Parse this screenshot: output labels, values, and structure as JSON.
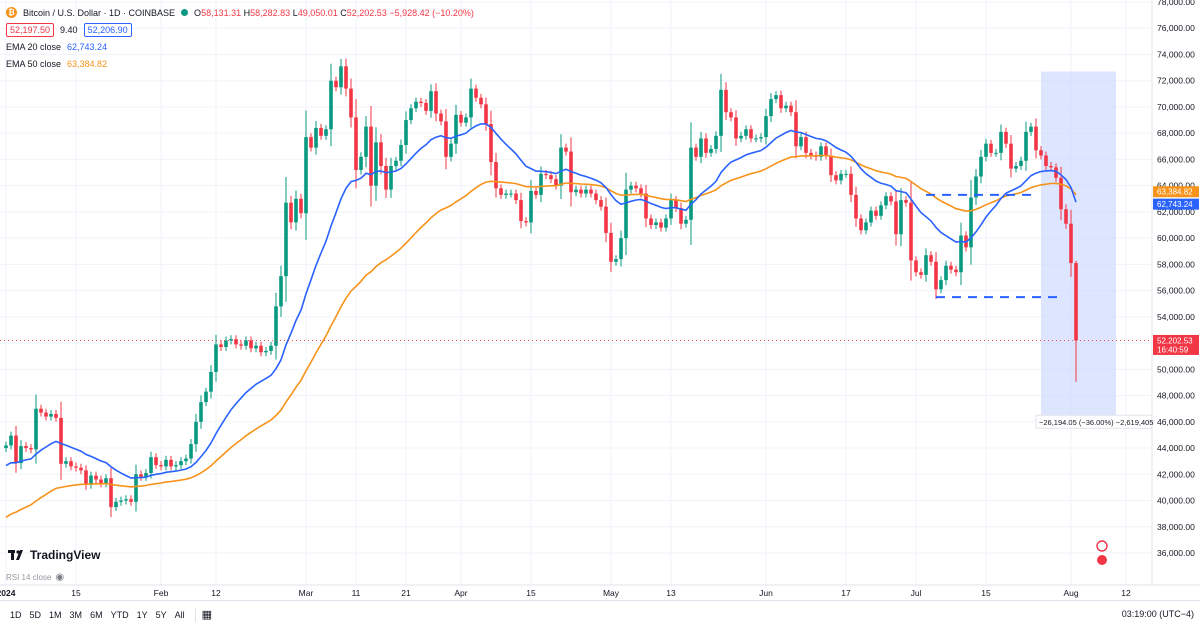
{
  "header": {
    "symbol_title": "Bitcoin / U.S. Dollar · 1D · COINBASE",
    "coin_glyph": "₿",
    "open_label": "O",
    "open": "58,131.31",
    "high_label": "H",
    "high": "58,282.83",
    "low_label": "L",
    "low": "49,050.01",
    "close_label": "C",
    "close": "52,202.53",
    "change": "−5,928.42 (−10.20%)",
    "sell_price": "52,197.50",
    "spread": "9.40",
    "buy_price": "52,206.90"
  },
  "indicators": [
    {
      "label": "EMA 20 close",
      "value": "62,743.24",
      "color": "#2962ff"
    },
    {
      "label": "EMA 50 close",
      "value": "63,384.82",
      "color": "#f7931a"
    }
  ],
  "price_axis": {
    "ticks": [
      "78,000.00",
      "76,000.00",
      "74,000.00",
      "72,000.00",
      "70,000.00",
      "68,000.00",
      "66,000.00",
      "64,000.00",
      "62,000.00",
      "60,000.00",
      "58,000.00",
      "56,000.00",
      "54,000.00",
      "52,000.00",
      "50,000.00",
      "48,000.00",
      "46,000.00",
      "44,000.00",
      "42,000.00",
      "40,000.00",
      "38,000.00",
      "36,000.00"
    ],
    "tick_values": [
      78000,
      76000,
      74000,
      72000,
      70000,
      68000,
      66000,
      64000,
      62000,
      60000,
      58000,
      56000,
      54000,
      52000,
      50000,
      48000,
      46000,
      44000,
      42000,
      40000,
      38000,
      36000
    ],
    "ema50_tag": "63,384.82",
    "ema20_tag": "62,743.24",
    "last_price_tag": "52,202.53",
    "countdown_tag": "16:40:59"
  },
  "time_axis": {
    "labels": [
      {
        "text": "2024",
        "bold": true,
        "day": 0
      },
      {
        "text": "15",
        "day": 14
      },
      {
        "text": "Feb",
        "day": 31
      },
      {
        "text": "12",
        "day": 42
      },
      {
        "text": "Mar",
        "day": 60
      },
      {
        "text": "11",
        "day": 70
      },
      {
        "text": "21",
        "day": 80
      },
      {
        "text": "Apr",
        "day": 91
      },
      {
        "text": "15",
        "day": 105
      },
      {
        "text": "May",
        "day": 121
      },
      {
        "text": "13",
        "day": 133
      },
      {
        "text": "Jun",
        "day": 152
      },
      {
        "text": "17",
        "day": 168
      },
      {
        "text": "Jul",
        "day": 182
      },
      {
        "text": "15",
        "day": 196
      },
      {
        "text": "Aug",
        "day": 213
      },
      {
        "text": "12",
        "day": 224
      }
    ]
  },
  "measure_label": "−26,194.05 (−36.00%) −2,619,405",
  "rsi_label": "RSI 14 close",
  "brand": "TradingView",
  "timeframes": [
    "1D",
    "5D",
    "1M",
    "3M",
    "6M",
    "YTD",
    "1Y",
    "5Y",
    "All"
  ],
  "clock": "03:19:00 (UTC−4)",
  "colors": {
    "up": "#089981",
    "down": "#f23645",
    "ema20": "#2962ff",
    "ema50": "#f7931a",
    "measure": "#d1dcff"
  },
  "chart_data": {
    "type": "candlestick",
    "x_start_date": "2024-01-01",
    "closes": [
      44200,
      44950,
      42850,
      44150,
      44000,
      43900,
      47000,
      46700,
      46400,
      46600,
      46300,
      42800,
      43000,
      42600,
      42500,
      42300,
      41200,
      41900,
      41600,
      41300,
      41700,
      39500,
      39900,
      40000,
      40100,
      39900,
      42000,
      41800,
      42100,
      43300,
      42700,
      42600,
      43100,
      42600,
      42700,
      43000,
      43200,
      44300,
      46000,
      47500,
      48300,
      49800,
      51900,
      51700,
      52200,
      52300,
      51900,
      51800,
      52200,
      51600,
      51800,
      51300,
      51400,
      51800,
      54800,
      57100,
      62700,
      61200,
      63000,
      61900,
      67700,
      66900,
      68400,
      67800,
      68300,
      72000,
      71500,
      73100,
      71400,
      69200,
      65200,
      66200,
      68500,
      64000,
      67300,
      65500,
      63700,
      65500,
      65900,
      67100,
      69000,
      69900,
      70400,
      70300,
      69700,
      71200,
      69500,
      68900,
      66200,
      67200,
      69400,
      68800,
      69200,
      71400,
      70700,
      70200,
      68700,
      65800,
      63800,
      63300,
      63400,
      63400,
      62900,
      61300,
      61200,
      63600,
      63300,
      64900,
      64800,
      64500,
      64000,
      66900,
      66600,
      63500,
      63700,
      63400,
      63700,
      63400,
      62900,
      62400,
      60400,
      58200,
      58400,
      60000,
      63700,
      64000,
      63800,
      63400,
      61500,
      61000,
      61200,
      60800,
      61500,
      62900,
      62300,
      61100,
      61400,
      66900,
      66200,
      67600,
      66500,
      66800,
      67800,
      71300,
      69600,
      69200,
      67600,
      67800,
      68300,
      67600,
      67600,
      67700,
      69300,
      70600,
      70900,
      69900,
      70100,
      69600,
      67000,
      67700,
      66500,
      66300,
      66200,
      67000,
      66300,
      64800,
      64400,
      64900,
      64900,
      63300,
      61500,
      60600,
      61200,
      62100,
      61700,
      62500,
      63200,
      62800,
      60300,
      62900,
      62700,
      58300,
      57400,
      57200,
      58700,
      58200,
      56100,
      56800,
      57900,
      57600,
      57400,
      60200,
      59300,
      63100,
      64700,
      66200,
      67200,
      66500,
      66500,
      68100,
      67200,
      65300,
      65500,
      65900,
      68100,
      68500,
      66700,
      66300,
      65500,
      65400,
      64600,
      62200,
      61100,
      58100,
      52200
    ],
    "last_low": 49050,
    "ema20_last": 62743.24,
    "ema50_last": 63384.82,
    "ylim": [
      35000,
      78500
    ],
    "level_lines": [
      {
        "price": 63300,
        "from_day": 184,
        "to_day": 205,
        "style": "dashed"
      },
      {
        "price": 55500,
        "from_day": 186,
        "to_day": 211,
        "style": "dashed"
      }
    ],
    "measure_range": {
      "from_day": 207,
      "to_day": 222,
      "price_high": 72700,
      "price_low": 46500
    }
  }
}
